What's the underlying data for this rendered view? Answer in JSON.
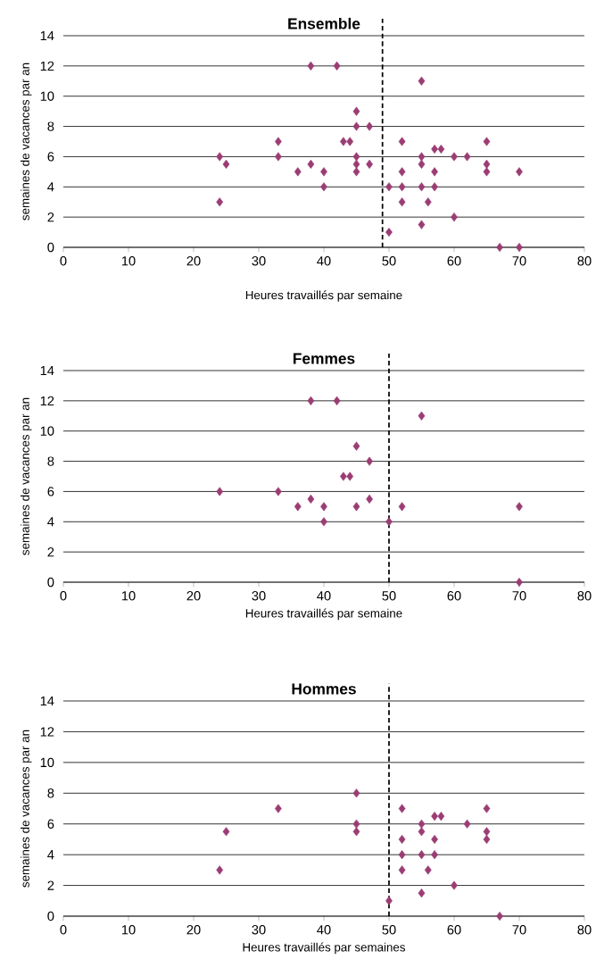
{
  "chart_data": [
    {
      "type": "scatter",
      "title": "Ensemble",
      "xlabel": "Heures travaillés par semaine",
      "ylabel": "semaines de vacances par an",
      "xlim": [
        0,
        80
      ],
      "ylim": [
        0,
        14
      ],
      "xticks": [
        0,
        10,
        20,
        30,
        40,
        50,
        60,
        70,
        80
      ],
      "yticks": [
        0,
        2,
        4,
        6,
        8,
        10,
        12,
        14
      ],
      "grid": "y",
      "marker": "diamond",
      "color": "#9b3d74",
      "x": [
        38,
        42,
        55,
        45,
        45,
        47,
        33,
        43,
        44,
        52,
        65,
        57,
        58,
        24,
        33,
        45,
        55,
        60,
        62,
        25,
        38,
        45,
        47,
        55,
        65,
        36,
        40,
        45,
        52,
        57,
        65,
        70,
        40,
        50,
        52,
        55,
        57,
        24,
        52,
        56,
        60,
        55,
        50,
        67,
        70
      ],
      "values": [
        12,
        12,
        11,
        9,
        8,
        8,
        7,
        7,
        7,
        7,
        7,
        6.5,
        6.5,
        6,
        6,
        6,
        6,
        6,
        6,
        5.5,
        5.5,
        5.5,
        5.5,
        5.5,
        5.5,
        5,
        5,
        5,
        5,
        5,
        5,
        5,
        4,
        4,
        4,
        4,
        4,
        3,
        3,
        3,
        2,
        1.5,
        1,
        0,
        0
      ],
      "ref_lines": [
        {
          "axis": "x",
          "value": 49,
          "line_style": "dashed",
          "color": "#000000"
        }
      ]
    },
    {
      "type": "scatter",
      "title": "Femmes",
      "xlabel": "Heures travaillés par semaine",
      "ylabel": "semaines de vacances par an",
      "xlim": [
        0,
        80
      ],
      "ylim": [
        0,
        14
      ],
      "xticks": [
        0,
        10,
        20,
        30,
        40,
        50,
        60,
        70,
        80
      ],
      "yticks": [
        0,
        2,
        4,
        6,
        8,
        10,
        12,
        14
      ],
      "grid": "y",
      "marker": "diamond",
      "color": "#9b3d74",
      "x": [
        38,
        42,
        55,
        45,
        47,
        43,
        44,
        24,
        33,
        38,
        47,
        36,
        40,
        45,
        52,
        70,
        40,
        50,
        70
      ],
      "values": [
        12,
        12,
        11,
        9,
        8,
        7,
        7,
        6,
        6,
        5.5,
        5.5,
        5,
        5,
        5,
        5,
        5,
        4,
        4,
        0
      ],
      "ref_lines": [
        {
          "axis": "x",
          "value": 50,
          "line_style": "dashed",
          "color": "#000000"
        }
      ]
    },
    {
      "type": "scatter",
      "title": "Hommes",
      "xlabel": "Heures travaillés par semaines",
      "ylabel": "semaines de vacances par an",
      "xlim": [
        0,
        80
      ],
      "ylim": [
        0,
        14
      ],
      "xticks": [
        0,
        10,
        20,
        30,
        40,
        50,
        60,
        70,
        80
      ],
      "yticks": [
        0,
        2,
        4,
        6,
        8,
        10,
        12,
        14
      ],
      "grid": "y",
      "marker": "diamond",
      "color": "#9b3d74",
      "x": [
        45,
        33,
        52,
        65,
        57,
        58,
        45,
        55,
        62,
        25,
        45,
        55,
        65,
        52,
        57,
        65,
        52,
        55,
        57,
        24,
        52,
        56,
        60,
        55,
        50,
        67
      ],
      "values": [
        8,
        7,
        7,
        7,
        6.5,
        6.5,
        6,
        6,
        6,
        5.5,
        5.5,
        5.5,
        5.5,
        5,
        5,
        5,
        4,
        4,
        4,
        3,
        3,
        3,
        2,
        1.5,
        1,
        0
      ],
      "ref_lines": [
        {
          "axis": "x",
          "value": 50,
          "line_style": "dashed",
          "color": "#000000"
        }
      ]
    }
  ]
}
